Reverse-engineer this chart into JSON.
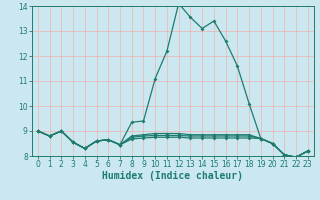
{
  "xlabel": "Humidex (Indice chaleur)",
  "bg_color": "#cbe8f0",
  "grid_color": "#f0b0b0",
  "line_color": "#1e7b6e",
  "xlim": [
    -0.5,
    23.5
  ],
  "ylim": [
    8.0,
    14.0
  ],
  "yticks": [
    8,
    9,
    10,
    11,
    12,
    13,
    14
  ],
  "xticks": [
    0,
    1,
    2,
    3,
    4,
    5,
    6,
    7,
    8,
    9,
    10,
    11,
    12,
    13,
    14,
    15,
    16,
    17,
    18,
    19,
    20,
    21,
    22,
    23
  ],
  "series": {
    "max": [
      9.0,
      8.8,
      9.0,
      8.55,
      8.3,
      8.6,
      8.65,
      8.45,
      9.35,
      9.4,
      11.1,
      12.2,
      14.1,
      13.55,
      13.1,
      13.4,
      12.6,
      11.6,
      10.1,
      8.7,
      8.5,
      8.05,
      7.95,
      8.2
    ],
    "p75": [
      9.0,
      8.8,
      9.0,
      8.55,
      8.3,
      8.6,
      8.65,
      8.45,
      8.8,
      8.85,
      8.9,
      8.9,
      8.9,
      8.85,
      8.85,
      8.85,
      8.85,
      8.85,
      8.85,
      8.7,
      8.5,
      8.05,
      7.95,
      8.2
    ],
    "mean": [
      9.0,
      8.8,
      9.0,
      8.55,
      8.3,
      8.6,
      8.65,
      8.45,
      8.75,
      8.8,
      8.82,
      8.82,
      8.82,
      8.8,
      8.8,
      8.8,
      8.8,
      8.8,
      8.8,
      8.7,
      8.5,
      8.05,
      7.95,
      8.2
    ],
    "min": [
      9.0,
      8.8,
      9.0,
      8.55,
      8.3,
      8.6,
      8.65,
      8.45,
      8.68,
      8.72,
      8.75,
      8.75,
      8.75,
      8.72,
      8.72,
      8.72,
      8.72,
      8.72,
      8.72,
      8.7,
      8.5,
      8.05,
      7.95,
      8.2
    ]
  },
  "xlabel_fontsize": 7,
  "tick_fontsize": 5.5,
  "linewidth": 0.9,
  "markersize": 2.0
}
